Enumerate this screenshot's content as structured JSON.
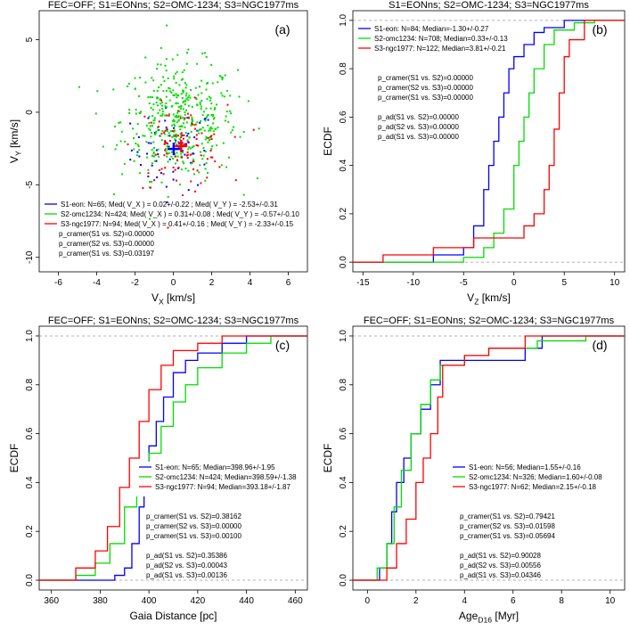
{
  "chart_data": [
    {
      "panel": "(a)",
      "type": "scatter",
      "title": "FEC=OFF; S1=EONns; S2=OMC-1234; S3=NGC1977ms",
      "xlabel": "V_X [km/s]",
      "ylabel": "V_Y [km/s]",
      "xlim": [
        -7,
        7
      ],
      "ylim": [
        -11,
        7
      ],
      "xticks": [
        -6,
        -4,
        -2,
        0,
        2,
        4,
        6
      ],
      "yticks": [
        -10,
        -5,
        0,
        5
      ],
      "grid": false,
      "legend_position": "bottom-left",
      "colors": {
        "S1": "#0000ff",
        "S2": "#00dd00",
        "S3": "#ff0000"
      },
      "series": [
        {
          "name": "S1-eon",
          "n": 65,
          "center": [
            0.02,
            -2.53
          ],
          "spread": [
            1.1,
            1.4
          ]
        },
        {
          "name": "S2-omc1234",
          "n": 424,
          "center": [
            0.31,
            -0.57
          ],
          "spread": [
            1.5,
            2.0
          ]
        },
        {
          "name": "S3-ngc1977",
          "n": 94,
          "center": [
            0.41,
            -2.33
          ],
          "spread": [
            1.2,
            1.4
          ]
        }
      ],
      "medians": [
        {
          "series": "S1",
          "x": 0.02,
          "y": -2.53
        },
        {
          "series": "S3",
          "x": 0.41,
          "y": -2.33
        }
      ],
      "legend": [
        "S1-eon: N=65; Med( V_X ) = 0.02+/-0.22 ; Med( V_Y ) = -2.53+/-0.31",
        "S2-omc1234: N=424; Med( V_X ) = 0.31+/-0.08 ; Med( V_Y ) = -0.57+/-0.10",
        "S3-ngc1977: N=94; Med( V_X ) = 0.41+/-0.16 ; Med( V_Y ) = -2.33+/-0.15"
      ],
      "stats": [
        "p_cramer(S1 vs. S2)=0.00000",
        "p_cramer(S2 vs. S3)=0.00000",
        "p_cramer(S1 vs. S3)=0.03197"
      ]
    },
    {
      "panel": "(b)",
      "type": "line",
      "title": "S1=EONns; S2=OMC-1234; S3=NGC1977ms",
      "xlabel": "V_Z [km/s]",
      "ylabel": "ECDF",
      "xlim": [
        -16,
        11
      ],
      "ylim": [
        -0.04,
        1.04
      ],
      "xticks": [
        -15,
        -10,
        -5,
        0,
        5,
        10
      ],
      "yticks": [
        0.0,
        0.2,
        0.4,
        0.6,
        0.8,
        1.0
      ],
      "grid": false,
      "legend_position": "top-left",
      "series": [
        {
          "name": "S1-eon",
          "color": "#0000ff",
          "points": [
            [
              -12,
              0
            ],
            [
              -8,
              0.03
            ],
            [
              -5,
              0.06
            ],
            [
              -4,
              0.15
            ],
            [
              -3,
              0.3
            ],
            [
              -2.5,
              0.4
            ],
            [
              -2,
              0.5
            ],
            [
              -1.5,
              0.6
            ],
            [
              -1,
              0.7
            ],
            [
              -0.5,
              0.8
            ],
            [
              0,
              0.85
            ],
            [
              1,
              0.9
            ],
            [
              2,
              0.95
            ],
            [
              3,
              0.97
            ],
            [
              5,
              1.0
            ]
          ]
        },
        {
          "name": "S2-omc1234",
          "color": "#00dd00",
          "points": [
            [
              -9,
              0
            ],
            [
              -5,
              0.02
            ],
            [
              -3,
              0.06
            ],
            [
              -2,
              0.12
            ],
            [
              -1,
              0.22
            ],
            [
              0,
              0.4
            ],
            [
              0.5,
              0.5
            ],
            [
              1,
              0.6
            ],
            [
              1.5,
              0.7
            ],
            [
              2,
              0.8
            ],
            [
              3,
              0.9
            ],
            [
              4,
              0.96
            ],
            [
              6,
              0.99
            ],
            [
              8,
              1.0
            ]
          ]
        },
        {
          "name": "S3-ngc1977",
          "color": "#ff0000",
          "points": [
            [
              -14,
              0
            ],
            [
              -13,
              0.03
            ],
            [
              -8,
              0.06
            ],
            [
              -4,
              0.1
            ],
            [
              1,
              0.15
            ],
            [
              2,
              0.2
            ],
            [
              3,
              0.3
            ],
            [
              3.5,
              0.4
            ],
            [
              4,
              0.55
            ],
            [
              4.5,
              0.7
            ],
            [
              5,
              0.85
            ],
            [
              5.5,
              0.92
            ],
            [
              7,
              1.0
            ]
          ]
        }
      ],
      "legend": [
        "S1-eon: N=84; Median=-1.30+/-0.27",
        "S2-omc1234: N=708; Median=0.33+/-0.13",
        "S3-ngc1977: N=122; Median=3.81+/-0.21"
      ],
      "stats": [
        "p_cramer(S1 vs. S2)=0.00000",
        "p_cramer(S2 vs. S3)=0.00000",
        "p_cramer(S1 vs. S3)=0.00000",
        "",
        "p_ad(S1 vs. S2)=0.00000",
        "p_ad(S2 vs. S3)=0.00000",
        "p_ad(S1 vs. S3)=0.00000"
      ]
    },
    {
      "panel": "(c)",
      "type": "line",
      "title": "FEC=OFF; S1=EONns; S2=OMC-1234; S3=NGC1977ms",
      "xlabel": "Gaia Distance [pc]",
      "ylabel": "ECDF",
      "xlim": [
        355,
        465
      ],
      "ylim": [
        -0.04,
        1.04
      ],
      "xticks": [
        360,
        380,
        400,
        420,
        440,
        460
      ],
      "yticks": [
        0.0,
        0.2,
        0.4,
        0.6,
        0.8,
        1.0
      ],
      "grid": false,
      "legend_position": "right",
      "series": [
        {
          "name": "S1-eon",
          "color": "#0000ff",
          "points": [
            [
              380,
              0
            ],
            [
              386,
              0.02
            ],
            [
              390,
              0.05
            ],
            [
              393,
              0.15
            ],
            [
              396,
              0.3
            ],
            [
              398,
              0.45
            ],
            [
              400,
              0.55
            ],
            [
              403,
              0.65
            ],
            [
              406,
              0.75
            ],
            [
              410,
              0.85
            ],
            [
              415,
              0.9
            ],
            [
              420,
              0.93
            ],
            [
              430,
              0.97
            ],
            [
              440,
              1.0
            ]
          ]
        },
        {
          "name": "S2-omc1234",
          "color": "#00dd00",
          "points": [
            [
              362,
              0
            ],
            [
              370,
              0.02
            ],
            [
              378,
              0.07
            ],
            [
              384,
              0.15
            ],
            [
              390,
              0.3
            ],
            [
              395,
              0.4
            ],
            [
              400,
              0.52
            ],
            [
              405,
              0.63
            ],
            [
              410,
              0.73
            ],
            [
              415,
              0.8
            ],
            [
              420,
              0.87
            ],
            [
              430,
              0.93
            ],
            [
              440,
              0.97
            ],
            [
              450,
              1.0
            ]
          ]
        },
        {
          "name": "S3-ngc1977",
          "color": "#ff0000",
          "points": [
            [
              360,
              0
            ],
            [
              370,
              0.05
            ],
            [
              378,
              0.12
            ],
            [
              383,
              0.22
            ],
            [
              388,
              0.38
            ],
            [
              392,
              0.5
            ],
            [
              396,
              0.65
            ],
            [
              400,
              0.78
            ],
            [
              405,
              0.88
            ],
            [
              410,
              0.94
            ],
            [
              420,
              0.97
            ],
            [
              430,
              1.0
            ]
          ]
        }
      ],
      "legend": [
        "S1-eon: N=65; Median=398.96+/-1.95",
        "S2-omc1234: N=424; Median=398.59+/-1.38",
        "S3-ngc1977: N=94; Median=393.18+/-1.87"
      ],
      "stats": [
        "p_cramer(S1 vs. S2)=0.38162",
        "p_cramer(S2 vs. S3)=0.00000",
        "p_cramer(S1 vs. S3)=0.00100",
        "",
        "p_ad(S1 vs. S2)=0.35386",
        "p_ad(S2 vs. S3)=0.00043",
        "p_ad(S1 vs. S3)=0.00136"
      ]
    },
    {
      "panel": "(d)",
      "type": "line",
      "title": "FEC=OFF; S1=EONns; S2=OMC-1234; S3=NGC1977ms",
      "xlabel": "Age_D16 [Myr]",
      "ylabel": "ECDF",
      "xlim": [
        -0.6,
        10.6
      ],
      "ylim": [
        -0.04,
        1.04
      ],
      "xticks": [
        0,
        2,
        4,
        6,
        8,
        10
      ],
      "yticks": [
        0.0,
        0.2,
        0.4,
        0.6,
        0.8,
        1.0
      ],
      "grid": false,
      "legend_position": "right",
      "series": [
        {
          "name": "S1-eon",
          "color": "#0000ff",
          "points": [
            [
              0.2,
              0
            ],
            [
              0.5,
              0.05
            ],
            [
              0.8,
              0.15
            ],
            [
              1.0,
              0.28
            ],
            [
              1.2,
              0.4
            ],
            [
              1.5,
              0.5
            ],
            [
              1.8,
              0.6
            ],
            [
              2.2,
              0.7
            ],
            [
              2.6,
              0.8
            ],
            [
              3.0,
              0.9
            ],
            [
              5.5,
              0.9
            ],
            [
              6.5,
              0.95
            ],
            [
              7.2,
              1.0
            ]
          ]
        },
        {
          "name": "S2-omc1234",
          "color": "#00dd00",
          "points": [
            [
              0,
              0
            ],
            [
              0.4,
              0.05
            ],
            [
              0.8,
              0.15
            ],
            [
              1.1,
              0.3
            ],
            [
              1.4,
              0.45
            ],
            [
              1.8,
              0.6
            ],
            [
              2.2,
              0.72
            ],
            [
              2.6,
              0.82
            ],
            [
              3.0,
              0.88
            ],
            [
              4.0,
              0.92
            ],
            [
              5.0,
              0.95
            ],
            [
              7.0,
              0.98
            ],
            [
              9.0,
              1.0
            ]
          ]
        },
        {
          "name": "S3-ngc1977",
          "color": "#ff0000",
          "points": [
            [
              0.3,
              0
            ],
            [
              0.8,
              0.05
            ],
            [
              1.2,
              0.15
            ],
            [
              1.6,
              0.25
            ],
            [
              2.0,
              0.4
            ],
            [
              2.3,
              0.5
            ],
            [
              2.6,
              0.6
            ],
            [
              2.9,
              0.75
            ],
            [
              3.1,
              0.88
            ],
            [
              4.0,
              0.92
            ],
            [
              5.0,
              0.95
            ],
            [
              6.5,
              1.0
            ]
          ]
        }
      ],
      "legend": [
        "S1-eon: N=56; Median=1.55+/-0.16",
        "S2-omc1234: N=326; Median=1.60+/-0.08",
        "S3-ngc1977: N=62; Median=2.15+/-0.18"
      ],
      "stats": [
        "p_cramer(S1 vs. S2)=0.79421",
        "p_cramer(S2 vs. S3)=0.01598",
        "p_cramer(S1 vs. S3)=0.05694",
        "",
        "p_ad(S1 vs. S2)=0.90028",
        "p_ad(S2 vs. S3)=0.00556",
        "p_ad(S1 vs. S3)=0.04346"
      ]
    }
  ]
}
